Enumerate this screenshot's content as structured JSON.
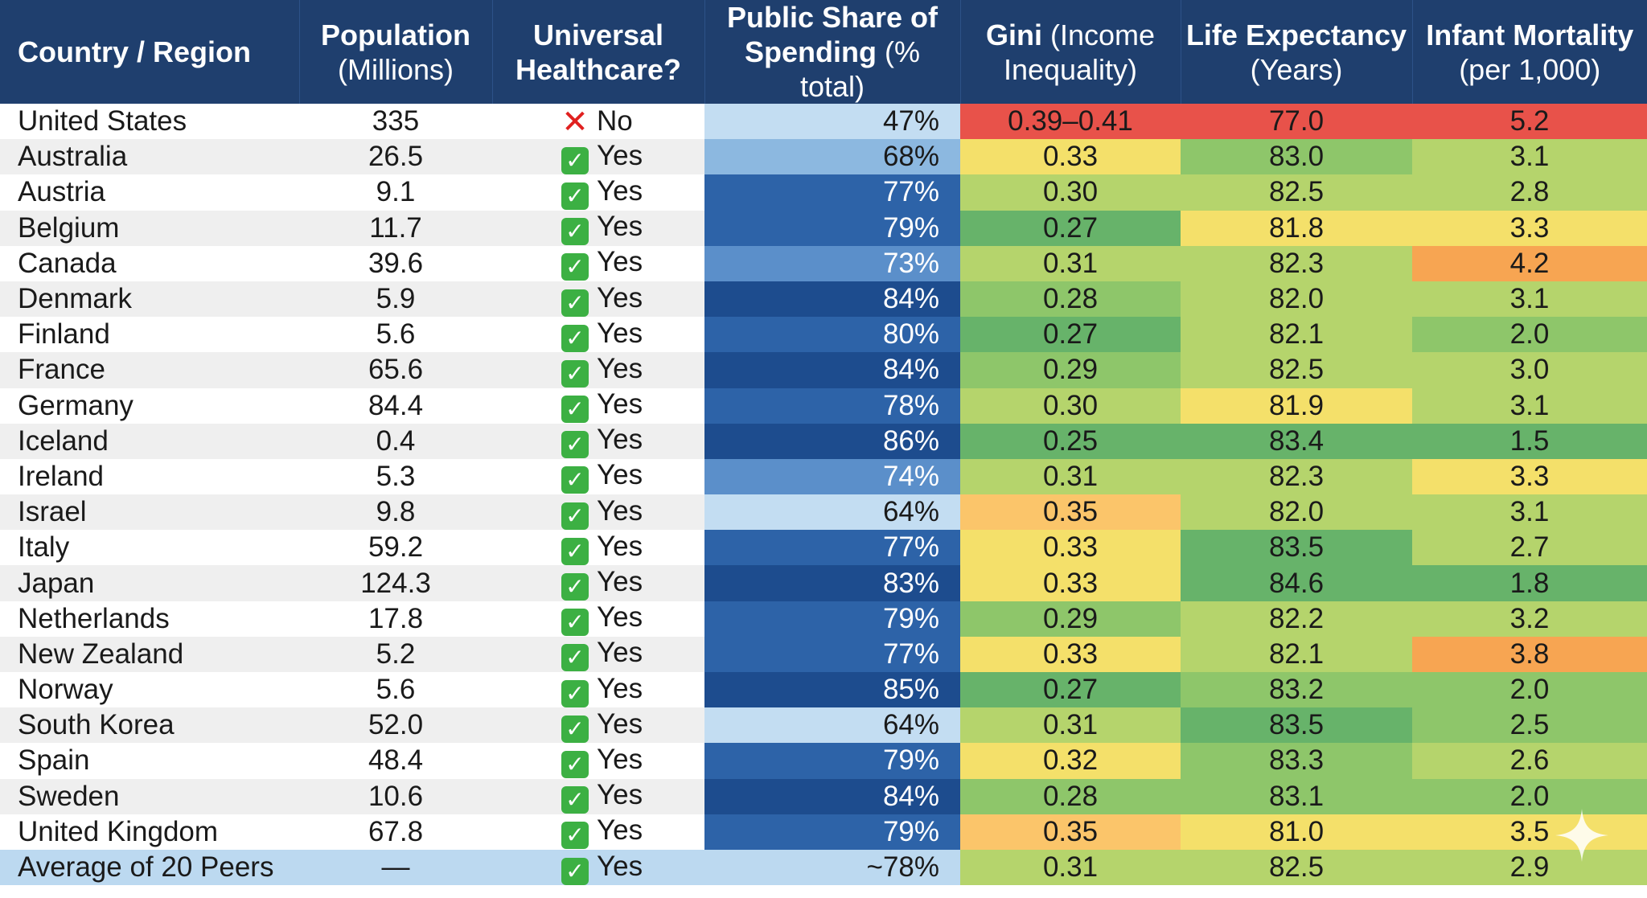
{
  "headers": [
    {
      "bold": "Country / Region",
      "rest": ""
    },
    {
      "bold": "Population",
      "rest": "(Millions)"
    },
    {
      "bold": "Universal",
      "rest": "Healthcare?"
    },
    {
      "bold": "Public Share of",
      "bold2": "Spending",
      "rest": "(% total)"
    },
    {
      "bold": "Gini",
      "rest1": "(Income",
      "rest": "Inequality)"
    },
    {
      "bold": "Life Expectancy",
      "rest": "(Years)"
    },
    {
      "bold": "Infant Mortality",
      "rest": "(per 1,000)"
    }
  ],
  "colors": {
    "header_bg": "#1f3f6e",
    "red": "#e8524a",
    "orange": "#f7a552",
    "light_orange": "#fbc56a",
    "yellow": "#f4e06a",
    "light_green": "#b5d46c",
    "green": "#8ec66a",
    "dark_green": "#67b36a",
    "blue_dark": "#1d4c8e",
    "blue": "#2d63a8",
    "blue_mid": "#5b8fca",
    "blue_light": "#8cb8e0",
    "blue_pale": "#c3ddf2"
  },
  "rows": [
    {
      "country": "United States",
      "population": "335",
      "uhc": "No",
      "uhc_icon": "cross-icon",
      "share": "47%",
      "gini": "0.39–0.41",
      "life": "77.0",
      "infant": "5.2"
    },
    {
      "country": "Australia",
      "population": "26.5",
      "uhc": "Yes",
      "uhc_icon": "check-icon",
      "share": "68%",
      "gini": "0.33",
      "life": "83.0",
      "infant": "3.1"
    },
    {
      "country": "Austria",
      "population": "9.1",
      "uhc": "Yes",
      "uhc_icon": "check-icon",
      "share": "77%",
      "gini": "0.30",
      "life": "82.5",
      "infant": "2.8"
    },
    {
      "country": "Belgium",
      "population": "11.7",
      "uhc": "Yes",
      "uhc_icon": "check-icon",
      "share": "79%",
      "gini": "0.27",
      "life": "81.8",
      "infant": "3.3"
    },
    {
      "country": "Canada",
      "population": "39.6",
      "uhc": "Yes",
      "uhc_icon": "check-icon",
      "share": "73%",
      "gini": "0.31",
      "life": "82.3",
      "infant": "4.2"
    },
    {
      "country": "Denmark",
      "population": "5.9",
      "uhc": "Yes",
      "uhc_icon": "check-icon",
      "share": "84%",
      "gini": "0.28",
      "life": "82.0",
      "infant": "3.1"
    },
    {
      "country": "Finland",
      "population": "5.6",
      "uhc": "Yes",
      "uhc_icon": "check-icon",
      "share": "80%",
      "gini": "0.27",
      "life": "82.1",
      "infant": "2.0"
    },
    {
      "country": "France",
      "population": "65.6",
      "uhc": "Yes",
      "uhc_icon": "check-icon",
      "share": "84%",
      "gini": "0.29",
      "life": "82.5",
      "infant": "3.0"
    },
    {
      "country": "Germany",
      "population": "84.4",
      "uhc": "Yes",
      "uhc_icon": "check-icon",
      "share": "78%",
      "gini": "0.30",
      "life": "81.9",
      "infant": "3.1"
    },
    {
      "country": "Iceland",
      "population": "0.4",
      "uhc": "Yes",
      "uhc_icon": "check-icon",
      "share": "86%",
      "gini": "0.25",
      "life": "83.4",
      "infant": "1.5"
    },
    {
      "country": "Ireland",
      "population": "5.3",
      "uhc": "Yes",
      "uhc_icon": "check-icon",
      "share": "74%",
      "gini": "0.31",
      "life": "82.3",
      "infant": "3.3"
    },
    {
      "country": "Israel",
      "population": "9.8",
      "uhc": "Yes",
      "uhc_icon": "check-icon",
      "share": "64%",
      "gini": "0.35",
      "life": "82.0",
      "infant": "3.1"
    },
    {
      "country": "Italy",
      "population": "59.2",
      "uhc": "Yes",
      "uhc_icon": "check-icon",
      "share": "77%",
      "gini": "0.33",
      "life": "83.5",
      "infant": "2.7"
    },
    {
      "country": "Japan",
      "population": "124.3",
      "uhc": "Yes",
      "uhc_icon": "check-icon",
      "share": "83%",
      "gini": "0.33",
      "life": "84.6",
      "infant": "1.8"
    },
    {
      "country": "Netherlands",
      "population": "17.8",
      "uhc": "Yes",
      "uhc_icon": "check-icon",
      "share": "79%",
      "gini": "0.29",
      "life": "82.2",
      "infant": "3.2"
    },
    {
      "country": "New Zealand",
      "population": "5.2",
      "uhc": "Yes",
      "uhc_icon": "check-icon",
      "share": "77%",
      "gini": "0.33",
      "life": "82.1",
      "infant": "3.8"
    },
    {
      "country": "Norway",
      "population": "5.6",
      "uhc": "Yes",
      "uhc_icon": "check-icon",
      "share": "85%",
      "gini": "0.27",
      "life": "83.2",
      "infant": "2.0"
    },
    {
      "country": "South Korea",
      "population": "52.0",
      "uhc": "Yes",
      "uhc_icon": "check-icon",
      "share": "64%",
      "gini": "0.31",
      "life": "83.5",
      "infant": "2.5"
    },
    {
      "country": "Spain",
      "population": "48.4",
      "uhc": "Yes",
      "uhc_icon": "check-icon",
      "share": "79%",
      "gini": "0.32",
      "life": "83.3",
      "infant": "2.6"
    },
    {
      "country": "Sweden",
      "population": "10.6",
      "uhc": "Yes",
      "uhc_icon": "check-icon",
      "share": "84%",
      "gini": "0.28",
      "life": "83.1",
      "infant": "2.0"
    },
    {
      "country": "United Kingdom",
      "population": "67.8",
      "uhc": "Yes",
      "uhc_icon": "check-icon",
      "share": "79%",
      "gini": "0.35",
      "life": "81.0",
      "infant": "3.5"
    },
    {
      "country": "Average of 20 Peers",
      "population": "—",
      "uhc": "Yes",
      "uhc_icon": "check-icon",
      "share": "~78%",
      "gini": "0.31",
      "life": "82.5",
      "infant": "2.9",
      "is_average": true
    }
  ]
}
